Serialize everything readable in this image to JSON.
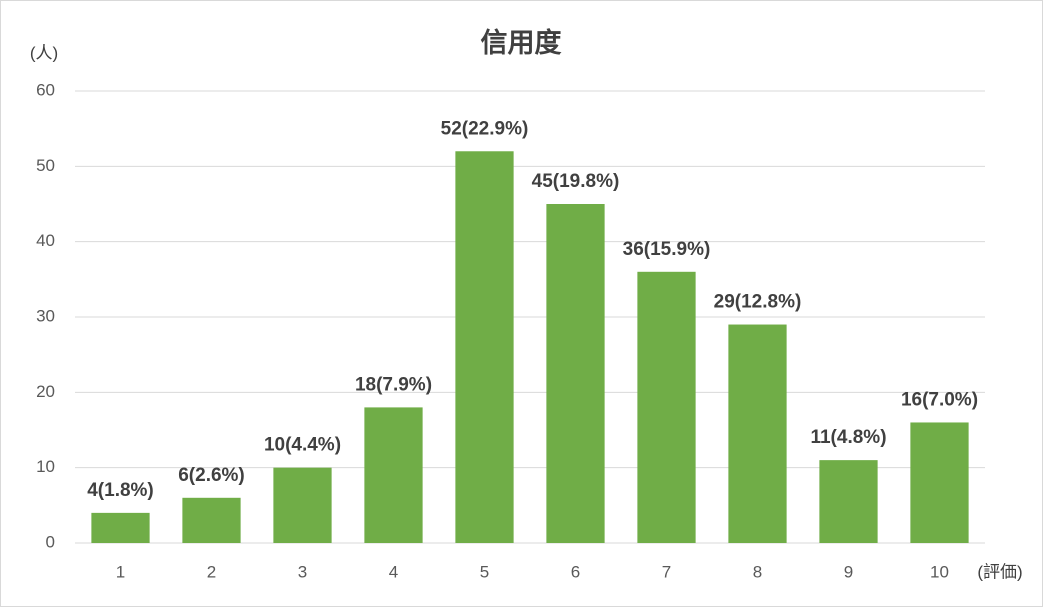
{
  "chart_data": {
    "type": "bar",
    "title": "信用度",
    "y_label": "(人)",
    "x_label": "(評価)",
    "categories": [
      "1",
      "2",
      "3",
      "4",
      "5",
      "6",
      "7",
      "8",
      "9",
      "10"
    ],
    "values": [
      4,
      6,
      10,
      18,
      52,
      45,
      36,
      29,
      11,
      16
    ],
    "value_labels": [
      "4(1.8%)",
      "6(2.6%)",
      "10(4.4%)",
      "18(7.9%)",
      "52(22.9%)",
      "45(19.8%)",
      "36(15.9%)",
      "29(12.8%)",
      "11(4.8%)",
      "16(7.0%)"
    ],
    "color": "#70ad47",
    "ylim": [
      0,
      60
    ],
    "yticks": [
      0,
      10,
      20,
      30,
      40,
      50,
      60
    ],
    "grid": true
  }
}
